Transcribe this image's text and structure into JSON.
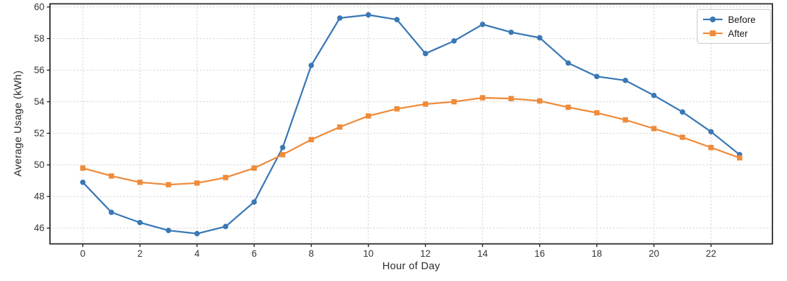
{
  "chart_data": {
    "type": "line",
    "title": "",
    "xlabel": "Hour of Day",
    "ylabel": "Average Usage (kWh)",
    "x": [
      0,
      1,
      2,
      3,
      4,
      5,
      6,
      7,
      8,
      9,
      10,
      11,
      12,
      13,
      14,
      15,
      16,
      17,
      18,
      19,
      20,
      21,
      22,
      23
    ],
    "series": [
      {
        "name": "Before",
        "color": "#3a78b5",
        "marker": "circle",
        "values": [
          48.9,
          47.0,
          46.35,
          45.85,
          45.65,
          46.1,
          47.65,
          51.1,
          56.3,
          59.3,
          59.5,
          59.2,
          57.05,
          57.85,
          58.9,
          58.4,
          58.05,
          56.45,
          55.6,
          55.35,
          54.4,
          53.35,
          52.1,
          50.65
        ]
      },
      {
        "name": "After",
        "color": "#ef8b3a",
        "marker": "square",
        "values": [
          49.8,
          49.3,
          48.9,
          48.75,
          48.85,
          49.2,
          49.8,
          50.65,
          51.6,
          52.4,
          53.1,
          53.55,
          53.85,
          54.0,
          54.25,
          54.2,
          54.05,
          53.65,
          53.3,
          52.85,
          52.3,
          51.75,
          51.1,
          50.45
        ]
      }
    ],
    "xticks": [
      0,
      2,
      4,
      6,
      8,
      10,
      12,
      14,
      16,
      18,
      20,
      22
    ],
    "yticks": [
      46,
      48,
      50,
      52,
      54,
      56,
      58,
      60
    ],
    "xlim": [
      -1.15,
      24.15
    ],
    "ylim": [
      45.0,
      60.2
    ],
    "grid": true,
    "grid_style": "dashed",
    "legend_position": "upper right",
    "colors": {
      "grid": "#d2d2d2",
      "spine": "#262626",
      "tick_text": "#333333"
    }
  }
}
